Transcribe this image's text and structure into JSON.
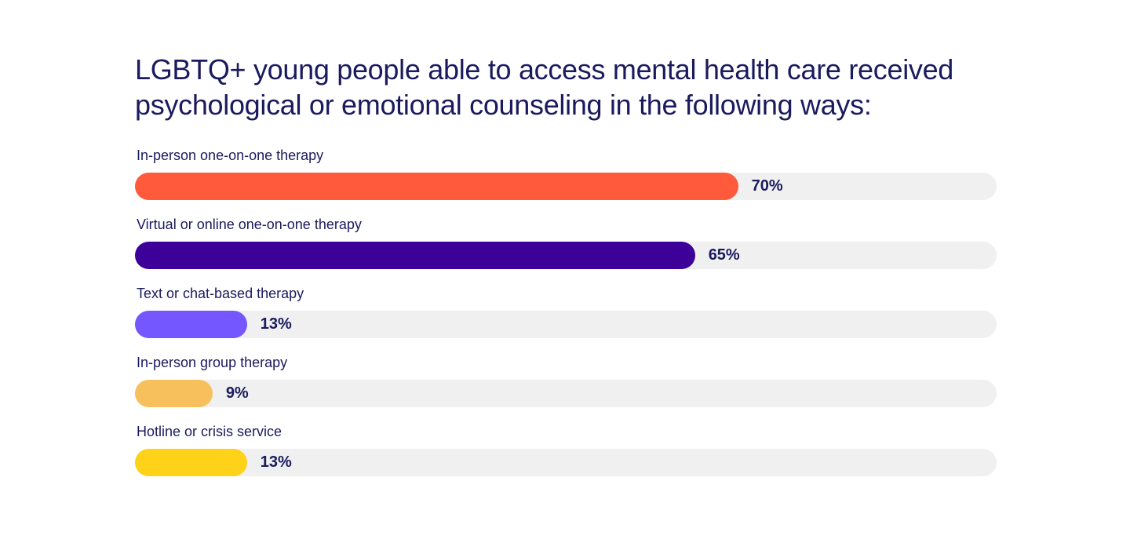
{
  "chart_data": {
    "type": "bar",
    "orientation": "horizontal",
    "title": "LGBTQ+ young people able to access mental health care received psychological or emotional counseling in the following ways:",
    "categories": [
      "In-person one-on-one therapy",
      "Virtual or online one-on-one therapy",
      "Text or chat-based therapy",
      "In-person group therapy",
      "Hotline or crisis service"
    ],
    "values": [
      70,
      65,
      13,
      9,
      13
    ],
    "value_labels": [
      "70%",
      "65%",
      "13%",
      "9%",
      "13%"
    ],
    "colors": [
      "#ff5a3c",
      "#3d0099",
      "#7557ff",
      "#f8c05d",
      "#ffd21a"
    ],
    "track_color": "#f0f0f0",
    "xlim": [
      0,
      100
    ],
    "grid": false
  }
}
